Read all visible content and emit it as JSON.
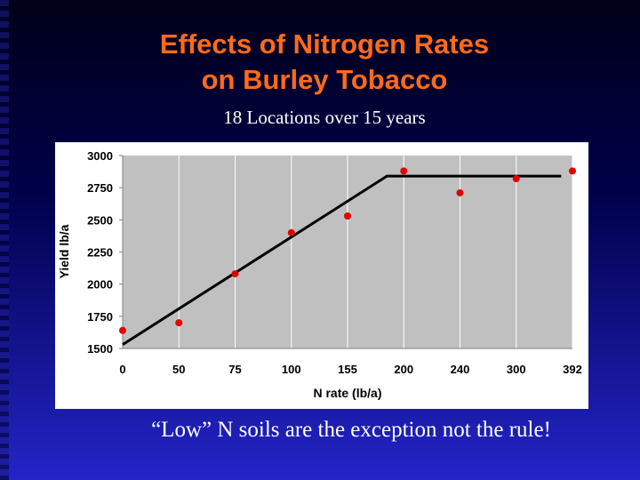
{
  "slide": {
    "title_line1": "Effects of Nitrogen Rates",
    "title_line2": "on Burley Tobacco",
    "subtitle": "18 Locations over 15 years",
    "footer": "“Low” N soils are the exception not the rule!"
  },
  "colors": {
    "title": "#ff6a1a",
    "point": "#e00000",
    "plot_area": "#c0c0c0",
    "line": "#000000"
  },
  "chart_data": {
    "type": "scatter",
    "title": "",
    "xlabel": "N rate (lb/a)",
    "ylabel": "Yield lb/a",
    "categories": [
      "0",
      "50",
      "75",
      "100",
      "155",
      "200",
      "240",
      "300",
      "392"
    ],
    "ylim": [
      1500,
      3000
    ],
    "yticks": [
      1500,
      1750,
      2000,
      2250,
      2500,
      2750,
      3000
    ],
    "grid": "vertical",
    "legend": "none",
    "series": [
      {
        "values": [
          1640,
          1700,
          2080,
          2400,
          2530,
          2880,
          2710,
          2820,
          2880
        ]
      }
    ],
    "fit_line": [
      [
        0,
        1530
      ],
      [
        4.7,
        2840
      ],
      [
        7.8,
        2840
      ]
    ]
  }
}
